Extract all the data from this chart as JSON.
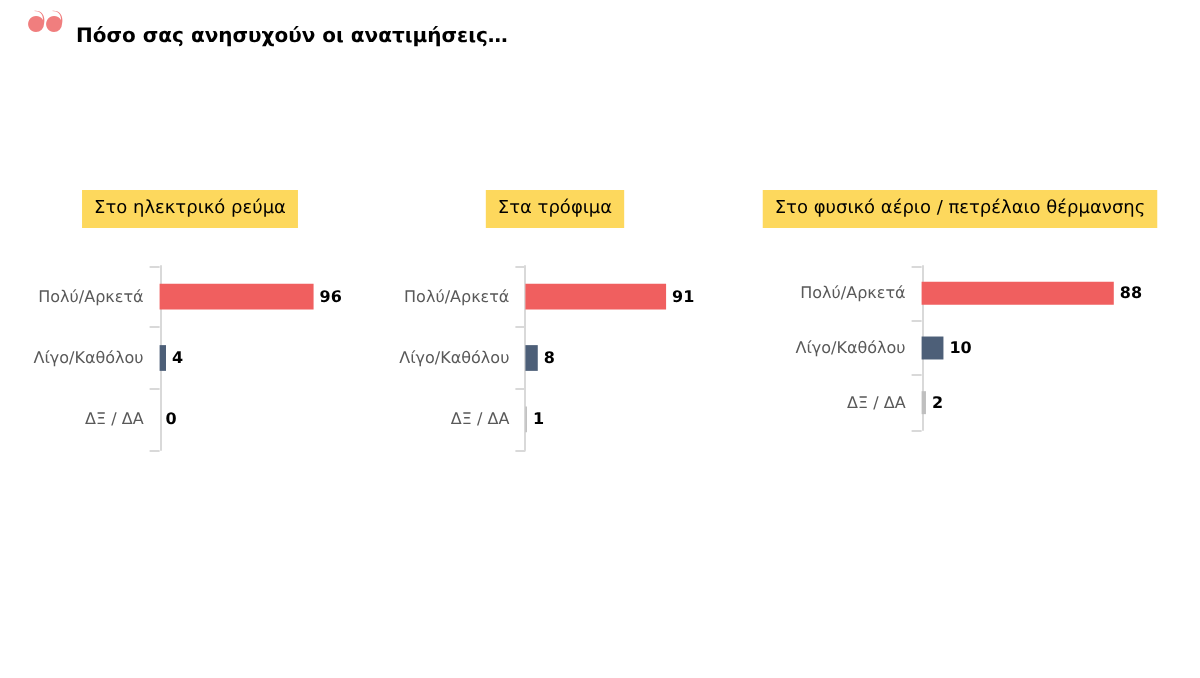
{
  "chart_data": [
    {
      "type": "bar",
      "orientation": "horizontal",
      "title": "Στο ηλεκτρικό ρεύμα",
      "annotations": [
        "Πόσο σας ανησυχούν οι ανατιμήσεις…"
      ],
      "categories": [
        "Πολύ/Αρκετά",
        "Λίγο/Καθόλου",
        "ΔΞ / ΔΑ"
      ],
      "values": [
        96,
        4,
        0
      ],
      "colors": [
        "#f05f5f",
        "#4d5f78",
        "#bfbfbf"
      ],
      "data_labels": true,
      "tick_labels": "y"
    },
    {
      "type": "bar",
      "orientation": "horizontal",
      "title": "Στα τρόφιμα",
      "categories": [
        "Πολύ/Αρκετά",
        "Λίγο/Καθόλου",
        "ΔΞ / ΔΑ"
      ],
      "values": [
        91,
        8,
        1
      ],
      "colors": [
        "#f05f5f",
        "#4d5f78",
        "#bfbfbf"
      ],
      "data_labels": true,
      "tick_labels": "y"
    },
    {
      "type": "bar",
      "orientation": "horizontal",
      "title": "Στο φυσικό αέριο / πετρέλαιο θέρμανσης",
      "categories": [
        "Πολύ/Αρκετά",
        "Λίγο/Καθόλου",
        "ΔΞ / ΔΑ"
      ],
      "values": [
        88,
        10,
        2
      ],
      "colors": [
        "#f05f5f",
        "#4d5f78",
        "#bfbfbf"
      ],
      "data_labels": true,
      "tick_labels": "y"
    }
  ]
}
